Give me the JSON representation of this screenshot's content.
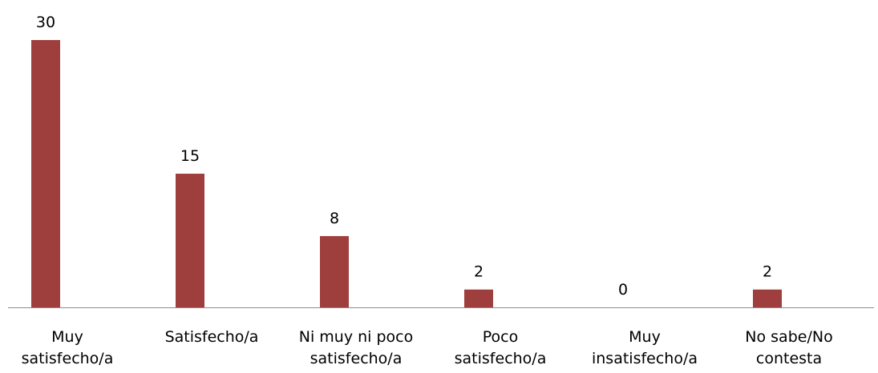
{
  "chart_data": {
    "type": "bar",
    "categories": [
      [
        "Muy",
        "satisfecho/a"
      ],
      [
        "Satisfecho/a"
      ],
      [
        "Ni muy ni poco",
        "satisfecho/a"
      ],
      [
        "Poco",
        "satisfecho/a"
      ],
      [
        "Muy",
        "insatisfecho/a"
      ],
      [
        "No sabe/No",
        "contesta"
      ]
    ],
    "values": [
      30,
      15,
      8,
      2,
      0,
      2
    ],
    "value_labels": [
      "30",
      "15",
      "8",
      "2",
      "0",
      "2"
    ],
    "ylim": [
      0,
      30
    ],
    "bar_color": "#9e3f3e",
    "axis_color": "#8c8c8c",
    "grid": false,
    "legend": false
  }
}
